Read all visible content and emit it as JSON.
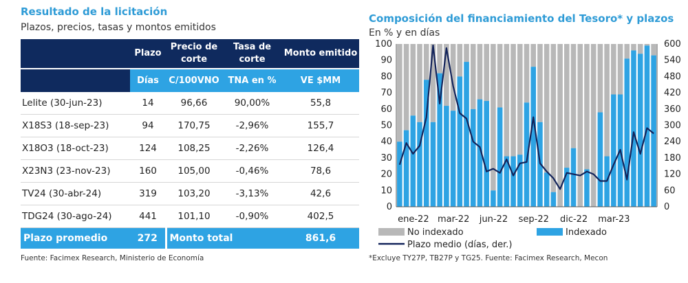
{
  "left": {
    "title": "Resultado de la licitación",
    "subtitle": "Plazos, precios, tasas y montos emitidos",
    "headers": [
      "",
      "Plazo",
      "Precio de corte",
      "Tasa de corte",
      "Monto emitido"
    ],
    "units": [
      "",
      "Días",
      "C/100VNO",
      "TNA en %",
      "VE $MM"
    ],
    "rows": [
      [
        "Lelite (30-jun-23)",
        "14",
        "96,66",
        "90,00%",
        "55,8"
      ],
      [
        "X18S3 (18-sep-23)",
        "94",
        "170,75",
        "-2,96%",
        "155,7"
      ],
      [
        "X18O3 (18-oct-23)",
        "124",
        "108,25",
        "-2,26%",
        "126,4"
      ],
      [
        "X23N3 (23-nov-23)",
        "160",
        "105,00",
        "-0,46%",
        "78,6"
      ],
      [
        "TV24 (30-abr-24)",
        "319",
        "103,20",
        "-3,13%",
        "42,6"
      ],
      [
        "TDG24 (30-ago-24)",
        "441",
        "101,10",
        "-0,90%",
        "402,5"
      ]
    ],
    "total": {
      "label1": "Plazo promedio",
      "value1": "272",
      "label2": "Monto total",
      "value2": "861,6"
    },
    "footnote": "Fuente: Facimex Research, Ministerio de Economía"
  },
  "right": {
    "title": "Composición del financiamiento del Tesoro* y plazos",
    "subtitle": "En % y en días",
    "footnote": "*Excluye TY27P, TB27P y TG25. Fuente: Facimex Research, Mecon"
  },
  "colors": {
    "navy": "#0f2a5e",
    "blue": "#2ea3e3",
    "title_blue": "#2e9bd6",
    "gray": "#b8b8b8",
    "bar_blue": "#2ea3e3",
    "line": "#12235a"
  },
  "chart_data": {
    "type": "bar",
    "stacked": true,
    "x_tick_labels": [
      "ene-22",
      "mar-22",
      "jun-22",
      "sep-22",
      "dic-22",
      "mar-23"
    ],
    "left_axis": {
      "min": 0,
      "max": 100,
      "step": 10
    },
    "right_axis": {
      "min": 0,
      "max": 600,
      "step": 60
    },
    "series": [
      {
        "name": "Indexado",
        "values": [
          40,
          47,
          56,
          52,
          78,
          52,
          82,
          62,
          59,
          80,
          89,
          60,
          66,
          65,
          10,
          61,
          31,
          31,
          32,
          64,
          86,
          52,
          21,
          9,
          0,
          24,
          36,
          0,
          23,
          0,
          58,
          31,
          69,
          69,
          91,
          96,
          94,
          99,
          93
        ]
      },
      {
        "name": "No indexado",
        "values": [
          60,
          53,
          44,
          48,
          22,
          48,
          18,
          38,
          41,
          20,
          11,
          40,
          34,
          35,
          90,
          39,
          69,
          69,
          68,
          36,
          14,
          48,
          79,
          91,
          100,
          76,
          64,
          100,
          77,
          100,
          42,
          69,
          31,
          31,
          9,
          4,
          6,
          1,
          7
        ]
      },
      {
        "name": "Plazo medio (días, der.)",
        "axis": "right",
        "values": [
          155,
          235,
          195,
          225,
          330,
          595,
          380,
          585,
          445,
          345,
          325,
          240,
          220,
          130,
          140,
          125,
          175,
          115,
          160,
          165,
          330,
          160,
          130,
          105,
          65,
          125,
          120,
          115,
          130,
          120,
          95,
          95,
          155,
          210,
          100,
          275,
          195,
          290,
          270
        ]
      }
    ],
    "legend": [
      "No indexado",
      "Indexado",
      "Plazo medio (días, der.)"
    ]
  }
}
